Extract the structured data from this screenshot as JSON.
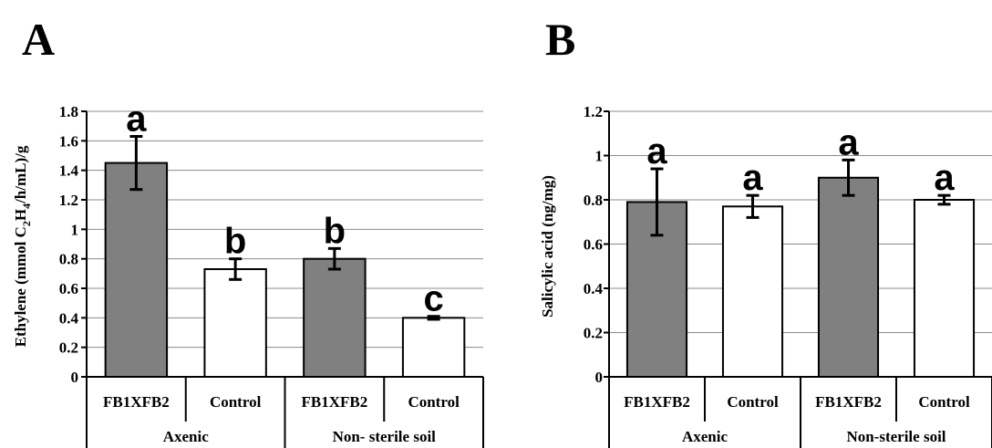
{
  "chart_data": [
    {
      "panel": "A",
      "type": "bar",
      "ylabel_parts": [
        "Ethylene (mmol C",
        "2",
        "H",
        "4",
        "/h/mL)/g"
      ],
      "ylim": [
        0,
        1.8
      ],
      "yticks": [
        "0",
        "0.2",
        "0.4",
        "0.6",
        "0.8",
        "1",
        "1.2",
        "1.4",
        "1.6",
        "1.8"
      ],
      "grid": true,
      "categories": [
        "FB1XFB2",
        "Control",
        "FB1XFB2",
        "Control"
      ],
      "groups": [
        {
          "label": "Axenic",
          "span": [
            0,
            1
          ]
        },
        {
          "label": "Non- sterile soil",
          "span": [
            2,
            3
          ]
        }
      ],
      "values": [
        1.45,
        0.73,
        0.8,
        0.4
      ],
      "errors": [
        0.18,
        0.07,
        0.07,
        0.01
      ],
      "bar_colors": [
        "#808080",
        "#ffffff",
        "#808080",
        "#ffffff"
      ],
      "significance": [
        "a",
        "b",
        "b",
        "c"
      ]
    },
    {
      "panel": "B",
      "type": "bar",
      "ylabel_parts": [
        "Salicylic acid (ng/mg)"
      ],
      "ylim": [
        0,
        1.2
      ],
      "yticks": [
        "0",
        "0.2",
        "0.4",
        "0.6",
        "0.8",
        "1",
        "1.2"
      ],
      "grid": true,
      "categories": [
        "FB1XFB2",
        "Control",
        "FB1XFB2",
        "Control"
      ],
      "groups": [
        {
          "label": "Axenic",
          "span": [
            0,
            1
          ]
        },
        {
          "label": "Non-sterile soil",
          "span": [
            2,
            3
          ]
        }
      ],
      "values": [
        0.79,
        0.77,
        0.9,
        0.8
      ],
      "errors": [
        0.15,
        0.05,
        0.08,
        0.02
      ],
      "bar_colors": [
        "#808080",
        "#ffffff",
        "#808080",
        "#ffffff"
      ],
      "significance": [
        "a",
        "a",
        "a",
        "a"
      ]
    }
  ]
}
